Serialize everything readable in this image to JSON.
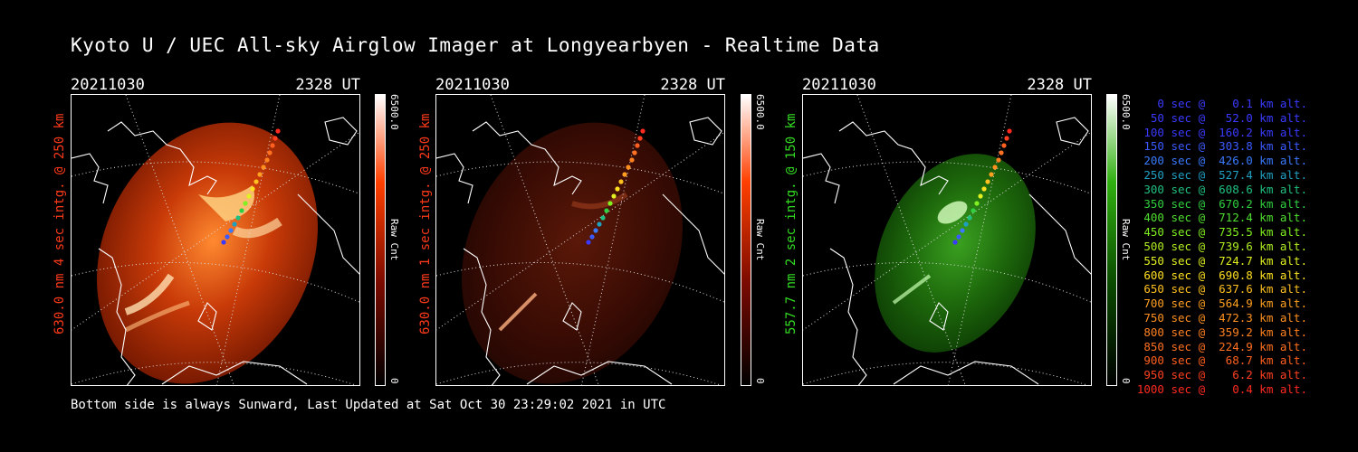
{
  "title": "Kyoto U / UEC All-sky Airglow Imager at Longyearbyen - Realtime Data",
  "footer": "Bottom side is always Sunward, Last Updated at Sat Oct 30 23:29:02 2021 in UTC",
  "panels": [
    {
      "date": "20211030",
      "time": "2328 UT",
      "side_label": "630.0 nm 4 sec intg. @ 250 km",
      "label_color": "#ff3a1a",
      "colorbar_max": "6500.0",
      "colorbar_unit": "Raw Cnt",
      "colorbar_min": "0",
      "colorbar_color": "#ff4000",
      "image_tone": "red-bright"
    },
    {
      "date": "20211030",
      "time": "2328 UT",
      "side_label": "630.0 nm 1 sec intg. @ 250 km",
      "label_color": "#ff3a1a",
      "colorbar_max": "6500.0",
      "colorbar_unit": "Raw Cnt",
      "colorbar_min": "0",
      "colorbar_color": "#ff4000",
      "image_tone": "red-dim"
    },
    {
      "date": "20211030",
      "time": "2328 UT",
      "side_label": "557.7 nm 2 sec intg. @ 150 km",
      "label_color": "#33dd22",
      "colorbar_max": "6500.0",
      "colorbar_unit": "Raw Cnt",
      "colorbar_min": "0",
      "colorbar_color": "#22bb00",
      "image_tone": "green"
    }
  ],
  "legend": [
    {
      "text": "   0 sec @    0.1 km alt.",
      "color": "#3a3aff"
    },
    {
      "text": "  50 sec @   52.0 km alt.",
      "color": "#3a3aff"
    },
    {
      "text": " 100 sec @  160.2 km alt.",
      "color": "#3a3aff"
    },
    {
      "text": " 150 sec @  303.8 km alt.",
      "color": "#3a5aff"
    },
    {
      "text": " 200 sec @  426.0 km alt.",
      "color": "#3a7aff"
    },
    {
      "text": " 250 sec @  527.4 km alt.",
      "color": "#20a0c0"
    },
    {
      "text": " 300 sec @  608.6 km alt.",
      "color": "#20c080"
    },
    {
      "text": " 350 sec @  670.2 km alt.",
      "color": "#30d040"
    },
    {
      "text": " 400 sec @  712.4 km alt.",
      "color": "#50e030"
    },
    {
      "text": " 450 sec @  735.5 km alt.",
      "color": "#80f020"
    },
    {
      "text": " 500 sec @  739.6 km alt.",
      "color": "#b0f020"
    },
    {
      "text": " 550 sec @  724.7 km alt.",
      "color": "#e0f020"
    },
    {
      "text": " 600 sec @  690.8 km alt.",
      "color": "#ffe020"
    },
    {
      "text": " 650 sec @  637.6 km alt.",
      "color": "#ffc020"
    },
    {
      "text": " 700 sec @  564.9 km alt.",
      "color": "#ffa020"
    },
    {
      "text": " 750 sec @  472.3 km alt.",
      "color": "#ff9020"
    },
    {
      "text": " 800 sec @  359.2 km alt.",
      "color": "#ff8020"
    },
    {
      "text": " 850 sec @  224.9 km alt.",
      "color": "#ff7020"
    },
    {
      "text": " 900 sec @   68.7 km alt.",
      "color": "#ff6020"
    },
    {
      "text": " 950 sec @    6.2 km alt.",
      "color": "#ff4020"
    },
    {
      "text": "1000 sec @    0.4 km alt.",
      "color": "#ff2a20"
    }
  ]
}
